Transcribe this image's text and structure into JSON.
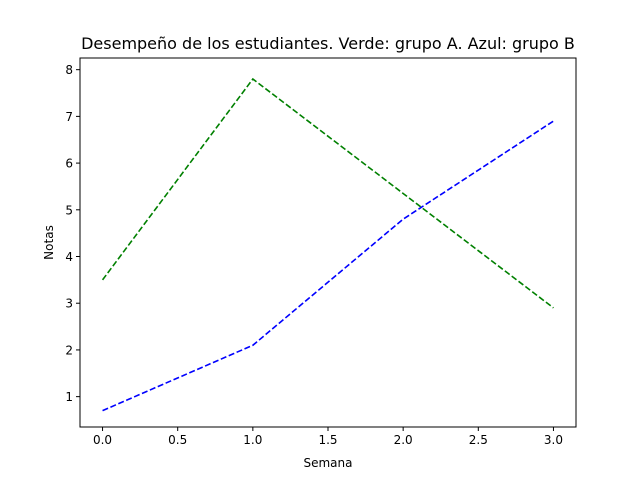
{
  "chart_data": {
    "type": "line",
    "title": "Desempeño de los estudiantes. Verde: grupo A. Azul: grupo B",
    "xlabel": "Semana",
    "ylabel": "Notas",
    "x": [
      0,
      1,
      2,
      3
    ],
    "xlim": [
      -0.15,
      3.15
    ],
    "ylim": [
      0.35,
      8.25
    ],
    "xticks": [
      0.0,
      0.5,
      1.0,
      1.5,
      2.0,
      2.5,
      3.0
    ],
    "xtick_labels": [
      "0.0",
      "0.5",
      "1.0",
      "1.5",
      "2.0",
      "2.5",
      "3.0"
    ],
    "yticks": [
      1,
      2,
      3,
      4,
      5,
      6,
      7,
      8
    ],
    "ytick_labels": [
      "1",
      "2",
      "3",
      "4",
      "5",
      "6",
      "7",
      "8"
    ],
    "grid": false,
    "series": [
      {
        "values": [
          3.5,
          7.8,
          5.35,
          2.9
        ],
        "color": "#008000",
        "linestyle": "dashed"
      },
      {
        "values": [
          0.7,
          2.1,
          4.8,
          6.9
        ],
        "color": "#0000ff",
        "linestyle": "dashed"
      }
    ]
  }
}
